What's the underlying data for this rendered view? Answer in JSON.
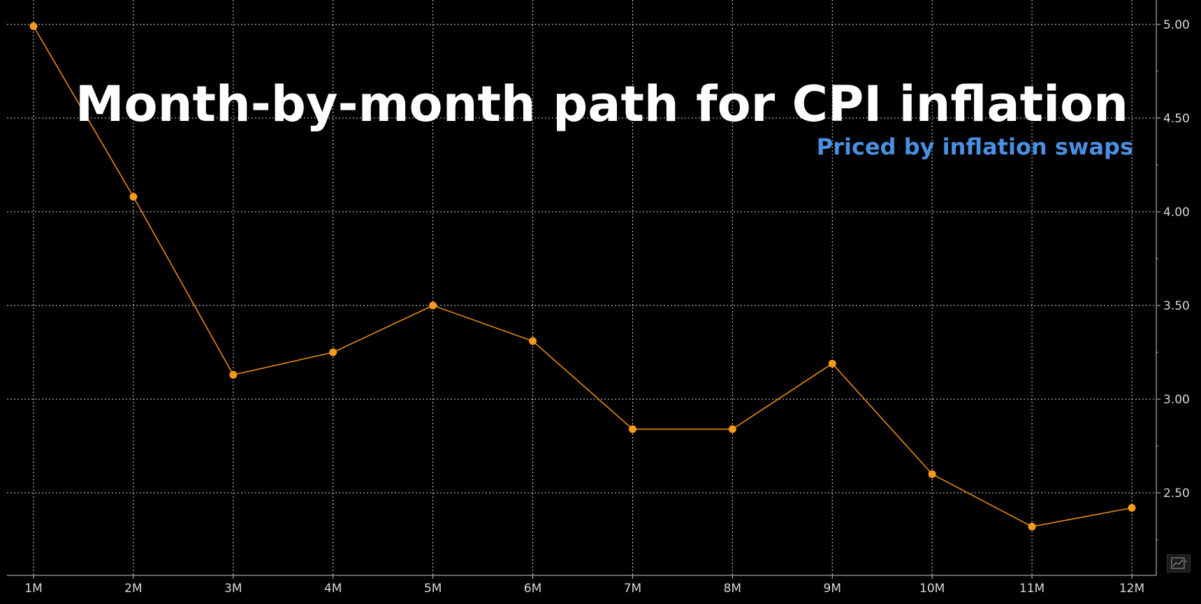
{
  "chart_data": {
    "type": "line",
    "title": "Month-by-month path for CPI inflation",
    "subtitle": "Priced by inflation swaps",
    "categories": [
      "1M",
      "2M",
      "3M",
      "4M",
      "5M",
      "6M",
      "7M",
      "8M",
      "9M",
      "10M",
      "11M",
      "12M"
    ],
    "series": [
      {
        "values": [
          4.99,
          4.08,
          3.13,
          3.25,
          3.5,
          3.31,
          2.84,
          2.84,
          3.19,
          2.6,
          2.32,
          2.42
        ]
      }
    ],
    "yticks": [
      "5.00",
      "4.50",
      "4.00",
      "3.50",
      "3.00",
      "2.50"
    ],
    "ytick_values": [
      5.0,
      4.5,
      4.0,
      3.5,
      3.0,
      2.5
    ],
    "ylim": [
      2.06,
      5.13
    ],
    "xlabel": "",
    "ylabel": "",
    "grid": true,
    "y_axis_side": "right",
    "colors": {
      "background": "#000000",
      "line": "#e8890c",
      "marker": "#f59a1b",
      "grid": "#ffffff",
      "title": "#ffffff",
      "subtitle": "#4a90e2"
    }
  },
  "toolbar": {
    "chart_type_icon": "line-chart-icon"
  }
}
